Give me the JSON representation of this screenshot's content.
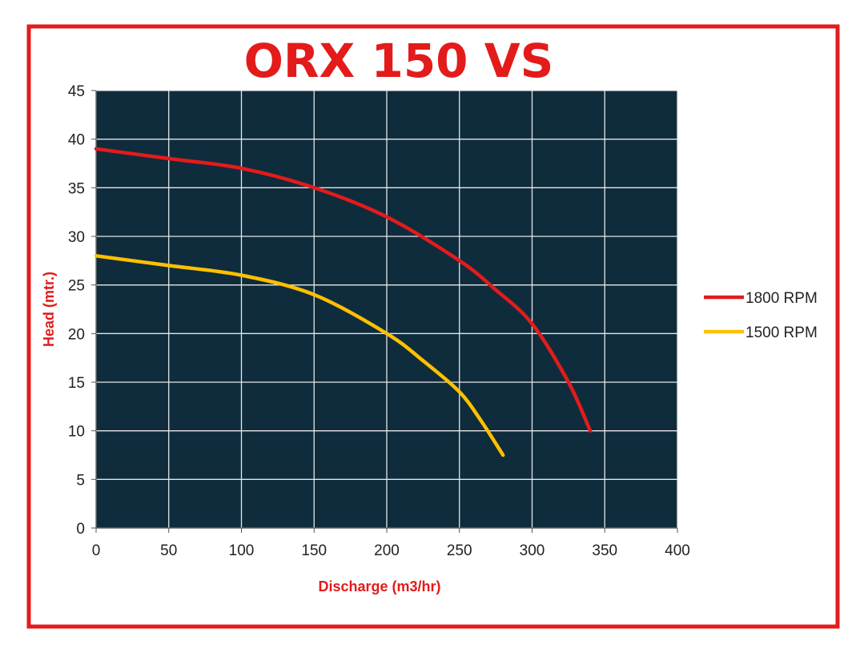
{
  "colors": {
    "border": "#e31b1b",
    "title": "#e31b1b",
    "axis_title": "#e31b1b",
    "plot_bg": "#0f2c3d",
    "grid": "#e6e6e6"
  },
  "chart_data": {
    "type": "line",
    "title": "ORX 150 VS",
    "xlabel": "Discharge (m3/hr)",
    "ylabel": "Head (mtr.)",
    "xlim": [
      0,
      400
    ],
    "ylim": [
      0,
      45
    ],
    "x_ticks": [
      "0",
      "50",
      "100",
      "150",
      "200",
      "250",
      "300",
      "350",
      "400"
    ],
    "y_ticks": [
      "0",
      "5",
      "10",
      "15",
      "20",
      "25",
      "30",
      "35",
      "40",
      "45"
    ],
    "grid": true,
    "legend_position": "right",
    "series": [
      {
        "name": "1800 RPM",
        "color": "#e31b1b",
        "x": [
          0,
          50,
          100,
          150,
          200,
          250,
          275,
          300,
          325,
          340
        ],
        "y": [
          39,
          38,
          37,
          35,
          32,
          27.5,
          24.5,
          21,
          15,
          10
        ]
      },
      {
        "name": "1500 RPM",
        "color": "#ffc000",
        "x": [
          0,
          50,
          100,
          150,
          200,
          225,
          250,
          265,
          280
        ],
        "y": [
          28,
          27,
          26,
          24,
          20,
          17.2,
          14,
          11,
          7.5
        ]
      }
    ]
  }
}
